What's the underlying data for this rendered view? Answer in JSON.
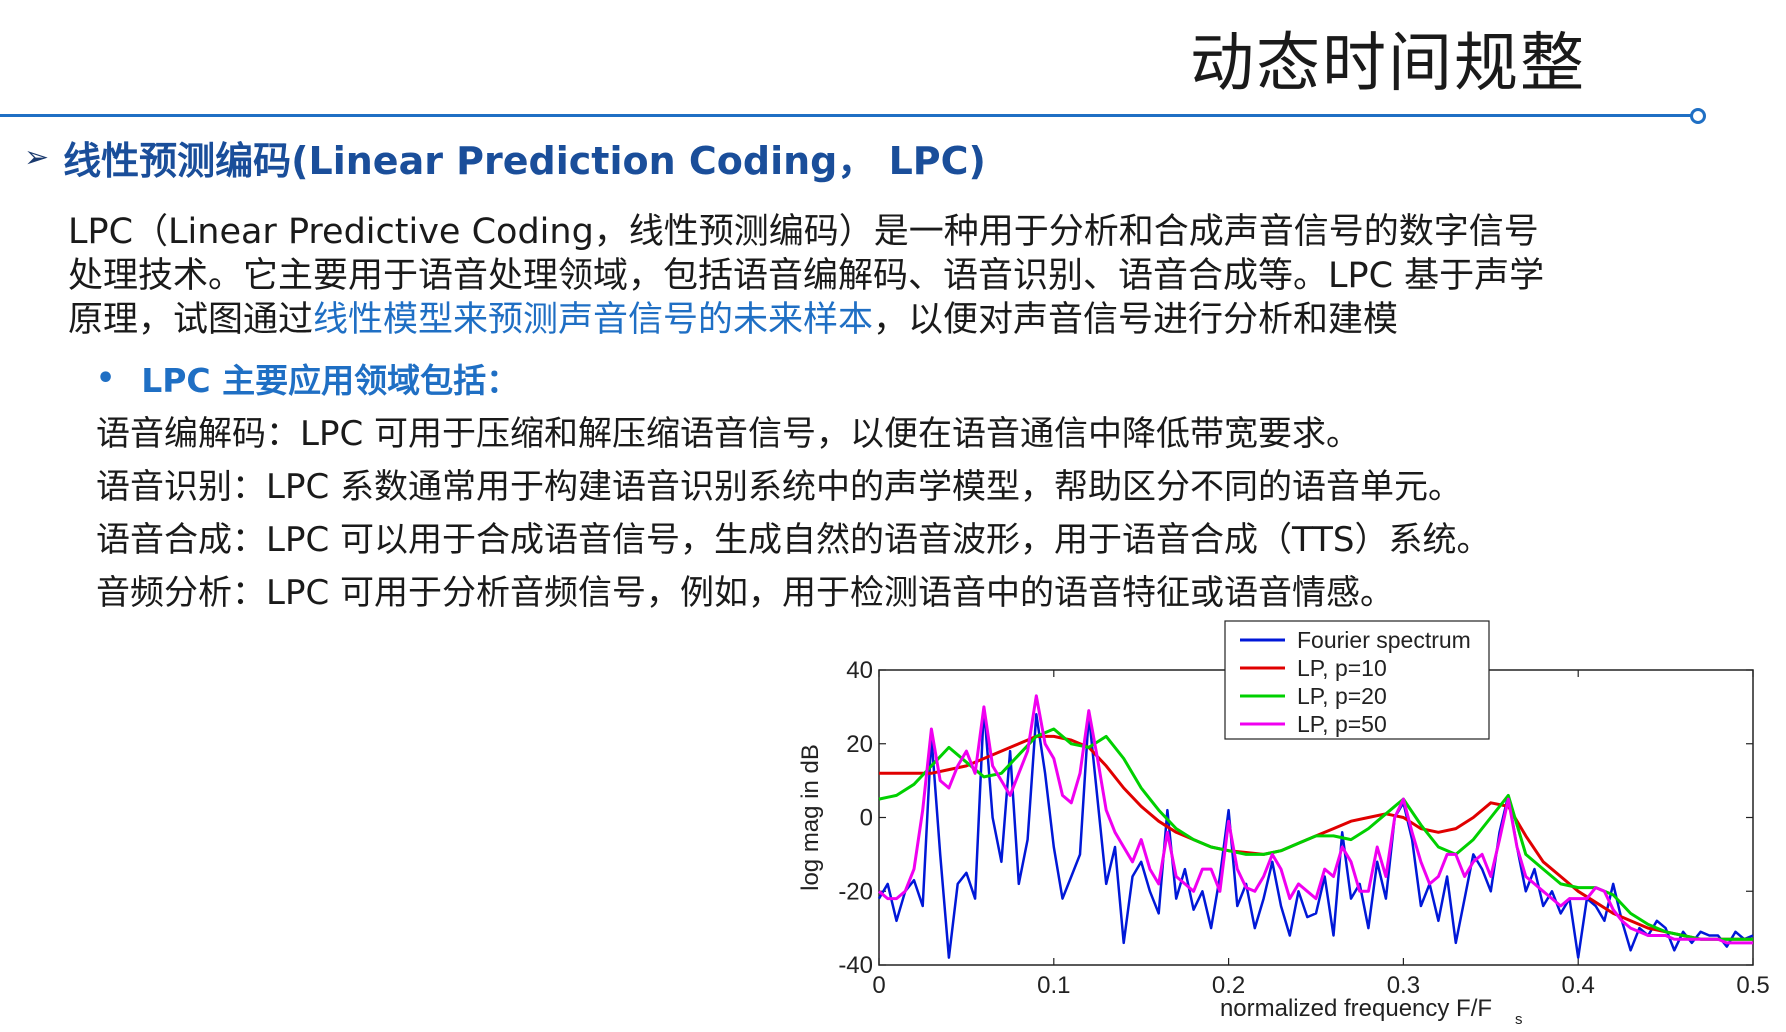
{
  "header": {
    "title": "动态时间规整"
  },
  "section": {
    "heading": "线性预测编码(Linear Prediction Coding， LPC)"
  },
  "intro": {
    "text_1": "LPC（Linear Predictive Coding，线性预测编码）是一种用于分析和合成声音信号的数字信号处理技术。它主要用于语音处理领域，包括语音编解码、语音识别、语音合成等。LPC 基于声学原理，试图通过",
    "highlight": "线性模型来预测声音信号的未来样本",
    "text_2": "，以便对声音信号进行分析和建模"
  },
  "bullet": {
    "label": "LPC 主要应用领域包括："
  },
  "applications": [
    "语音编解码：LPC 可用于压缩和解压缩语音信号，以便在语音通信中降低带宽要求。",
    "语音识别：LPC 系数通常用于构建语音识别系统中的声学模型，帮助区分不同的语音单元。",
    "语音合成：LPC 可以用于合成语音信号，生成自然的语音波形，用于语音合成（TTS）系统。",
    "音频分析：LPC 可用于分析音频信号，例如，用于检测语音中的语音特征或语音情感。"
  ],
  "colors": {
    "accent_blue": "#1f6fc4",
    "heading_blue": "#1a4e9a",
    "fourier": "#0018d8",
    "lp10": "#e00000",
    "lp20": "#00d000",
    "lp50": "#f000f0"
  },
  "chart_data": {
    "type": "line",
    "xlabel": "normalized frequency  F/F",
    "xlabel_sub": "s",
    "ylabel": "log mag in dB",
    "xlim": [
      0,
      0.5
    ],
    "ylim": [
      -40,
      40
    ],
    "x_ticks": [
      0,
      0.1,
      0.2,
      0.3,
      0.4,
      0.5
    ],
    "x_tick_labels": [
      "0",
      "0.1",
      "0.2",
      "0.3",
      "0.4",
      "0.5"
    ],
    "y_ticks": [
      40,
      20,
      0,
      -20,
      -40
    ],
    "y_tick_labels": [
      "40",
      "20",
      "0",
      "-20",
      "-40"
    ],
    "legend_position": "top-right",
    "grid": false,
    "series": [
      {
        "name": "Fourier spectrum",
        "color": "#0018d8",
        "x": [
          0,
          0.005,
          0.01,
          0.015,
          0.02,
          0.025,
          0.03,
          0.035,
          0.04,
          0.045,
          0.05,
          0.055,
          0.06,
          0.065,
          0.07,
          0.075,
          0.08,
          0.085,
          0.09,
          0.095,
          0.1,
          0.105,
          0.11,
          0.115,
          0.12,
          0.125,
          0.13,
          0.135,
          0.14,
          0.145,
          0.15,
          0.155,
          0.16,
          0.165,
          0.17,
          0.175,
          0.18,
          0.185,
          0.19,
          0.195,
          0.2,
          0.205,
          0.21,
          0.215,
          0.22,
          0.225,
          0.23,
          0.235,
          0.24,
          0.245,
          0.25,
          0.255,
          0.26,
          0.265,
          0.27,
          0.275,
          0.28,
          0.285,
          0.29,
          0.295,
          0.3,
          0.305,
          0.31,
          0.315,
          0.32,
          0.325,
          0.33,
          0.335,
          0.34,
          0.345,
          0.35,
          0.355,
          0.36,
          0.365,
          0.37,
          0.375,
          0.38,
          0.385,
          0.39,
          0.395,
          0.4,
          0.405,
          0.41,
          0.415,
          0.42,
          0.425,
          0.43,
          0.435,
          0.44,
          0.445,
          0.45,
          0.455,
          0.46,
          0.465,
          0.47,
          0.475,
          0.48,
          0.485,
          0.49,
          0.495,
          0.5
        ],
        "y": [
          -22,
          -18,
          -28,
          -20,
          -17,
          -24,
          22,
          -10,
          -38,
          -18,
          -15,
          -22,
          30,
          0,
          -12,
          18,
          -18,
          -6,
          28,
          12,
          -8,
          -22,
          -16,
          -10,
          28,
          5,
          -18,
          -8,
          -34,
          -16,
          -12,
          -20,
          -26,
          2,
          -22,
          -14,
          -25,
          -20,
          -30,
          -16,
          2,
          -24,
          -18,
          -30,
          -22,
          -12,
          -24,
          -32,
          -20,
          -27,
          -26,
          -16,
          -32,
          -4,
          -22,
          -18,
          -30,
          -12,
          -22,
          0,
          4,
          -6,
          -24,
          -18,
          -28,
          -16,
          -34,
          -22,
          -10,
          -14,
          -20,
          -4,
          6,
          -8,
          -20,
          -14,
          -24,
          -20,
          -26,
          -22,
          -38,
          -22,
          -24,
          -28,
          -18,
          -28,
          -36,
          -30,
          -32,
          -28,
          -30,
          -36,
          -31,
          -34,
          -31,
          -32,
          -32,
          -35,
          -31,
          -33,
          -32
        ]
      },
      {
        "name": "LP, p=10",
        "color": "#e00000",
        "x": [
          0,
          0.01,
          0.02,
          0.03,
          0.04,
          0.05,
          0.06,
          0.07,
          0.08,
          0.09,
          0.1,
          0.11,
          0.12,
          0.13,
          0.14,
          0.15,
          0.16,
          0.17,
          0.18,
          0.19,
          0.2,
          0.21,
          0.22,
          0.23,
          0.24,
          0.25,
          0.26,
          0.27,
          0.28,
          0.29,
          0.3,
          0.31,
          0.32,
          0.33,
          0.34,
          0.35,
          0.36,
          0.37,
          0.38,
          0.39,
          0.4,
          0.41,
          0.42,
          0.43,
          0.44,
          0.45,
          0.46,
          0.47,
          0.48,
          0.49,
          0.5
        ],
        "y": [
          12,
          12,
          12,
          12,
          13,
          14,
          16,
          18,
          20,
          22,
          22,
          21,
          19,
          14,
          8,
          3,
          -1,
          -4,
          -6,
          -8,
          -9,
          -9.5,
          -10,
          -9,
          -7,
          -5,
          -3,
          -1,
          0,
          1,
          0,
          -3,
          -4,
          -3,
          0,
          4,
          3,
          -5,
          -12,
          -16,
          -20,
          -23,
          -26,
          -28,
          -30,
          -31,
          -32,
          -33,
          -33,
          -33,
          -33
        ]
      },
      {
        "name": "LP, p=20",
        "color": "#00d000",
        "x": [
          0,
          0.01,
          0.02,
          0.03,
          0.04,
          0.05,
          0.06,
          0.07,
          0.08,
          0.09,
          0.1,
          0.11,
          0.12,
          0.13,
          0.14,
          0.15,
          0.16,
          0.17,
          0.18,
          0.19,
          0.2,
          0.21,
          0.22,
          0.23,
          0.24,
          0.25,
          0.26,
          0.27,
          0.28,
          0.29,
          0.3,
          0.31,
          0.32,
          0.33,
          0.34,
          0.35,
          0.36,
          0.37,
          0.38,
          0.39,
          0.4,
          0.41,
          0.42,
          0.43,
          0.44,
          0.45,
          0.46,
          0.47,
          0.48,
          0.49,
          0.5
        ],
        "y": [
          5,
          6,
          9,
          14,
          19,
          15,
          11,
          12,
          17,
          22,
          24,
          20,
          19,
          22,
          16,
          8,
          2,
          -3,
          -6,
          -8,
          -9,
          -10,
          -10,
          -9,
          -7,
          -5,
          -5,
          -6,
          -3,
          1,
          5,
          -2,
          -8,
          -10,
          -6,
          0,
          6,
          -10,
          -14,
          -18,
          -19,
          -19,
          -21,
          -26,
          -29,
          -31,
          -32,
          -33,
          -33,
          -33,
          -33
        ]
      },
      {
        "name": "LP, p=50",
        "color": "#f000f0",
        "x": [
          0,
          0.005,
          0.01,
          0.015,
          0.02,
          0.025,
          0.03,
          0.035,
          0.04,
          0.045,
          0.05,
          0.055,
          0.06,
          0.065,
          0.07,
          0.075,
          0.08,
          0.085,
          0.09,
          0.095,
          0.1,
          0.105,
          0.11,
          0.115,
          0.12,
          0.125,
          0.13,
          0.135,
          0.14,
          0.145,
          0.15,
          0.155,
          0.16,
          0.165,
          0.17,
          0.175,
          0.18,
          0.185,
          0.19,
          0.195,
          0.2,
          0.205,
          0.21,
          0.215,
          0.22,
          0.225,
          0.23,
          0.235,
          0.24,
          0.245,
          0.25,
          0.255,
          0.26,
          0.265,
          0.27,
          0.275,
          0.28,
          0.285,
          0.29,
          0.295,
          0.3,
          0.305,
          0.31,
          0.315,
          0.32,
          0.325,
          0.33,
          0.335,
          0.34,
          0.345,
          0.35,
          0.355,
          0.36,
          0.365,
          0.37,
          0.375,
          0.38,
          0.385,
          0.39,
          0.395,
          0.4,
          0.405,
          0.41,
          0.415,
          0.42,
          0.425,
          0.43,
          0.435,
          0.44,
          0.445,
          0.45,
          0.455,
          0.46,
          0.465,
          0.47,
          0.475,
          0.48,
          0.485,
          0.49,
          0.495,
          0.5
        ],
        "y": [
          -20,
          -22,
          -22,
          -20,
          -14,
          2,
          24,
          10,
          8,
          14,
          18,
          12,
          30,
          14,
          10,
          6,
          12,
          18,
          33,
          20,
          16,
          6,
          4,
          12,
          29,
          16,
          2,
          -4,
          -8,
          -12,
          -6,
          -14,
          -18,
          -4,
          -16,
          -18,
          -20,
          -14,
          -14,
          -20,
          -1,
          -14,
          -19,
          -20,
          -16,
          -10,
          -14,
          -22,
          -18,
          -20,
          -22,
          -14,
          -16,
          -8,
          -12,
          -20,
          -20,
          -8,
          -16,
          0,
          5,
          -4,
          -12,
          -18,
          -16,
          -10,
          -10,
          -16,
          -12,
          -10,
          -16,
          -6,
          5,
          -8,
          -16,
          -18,
          -20,
          -22,
          -24,
          -22,
          -22,
          -22,
          -19,
          -20,
          -25,
          -28,
          -30,
          -31,
          -32,
          -32,
          -32,
          -33,
          -33,
          -33,
          -33,
          -33,
          -33,
          -34,
          -34,
          -34,
          -34
        ]
      }
    ]
  }
}
